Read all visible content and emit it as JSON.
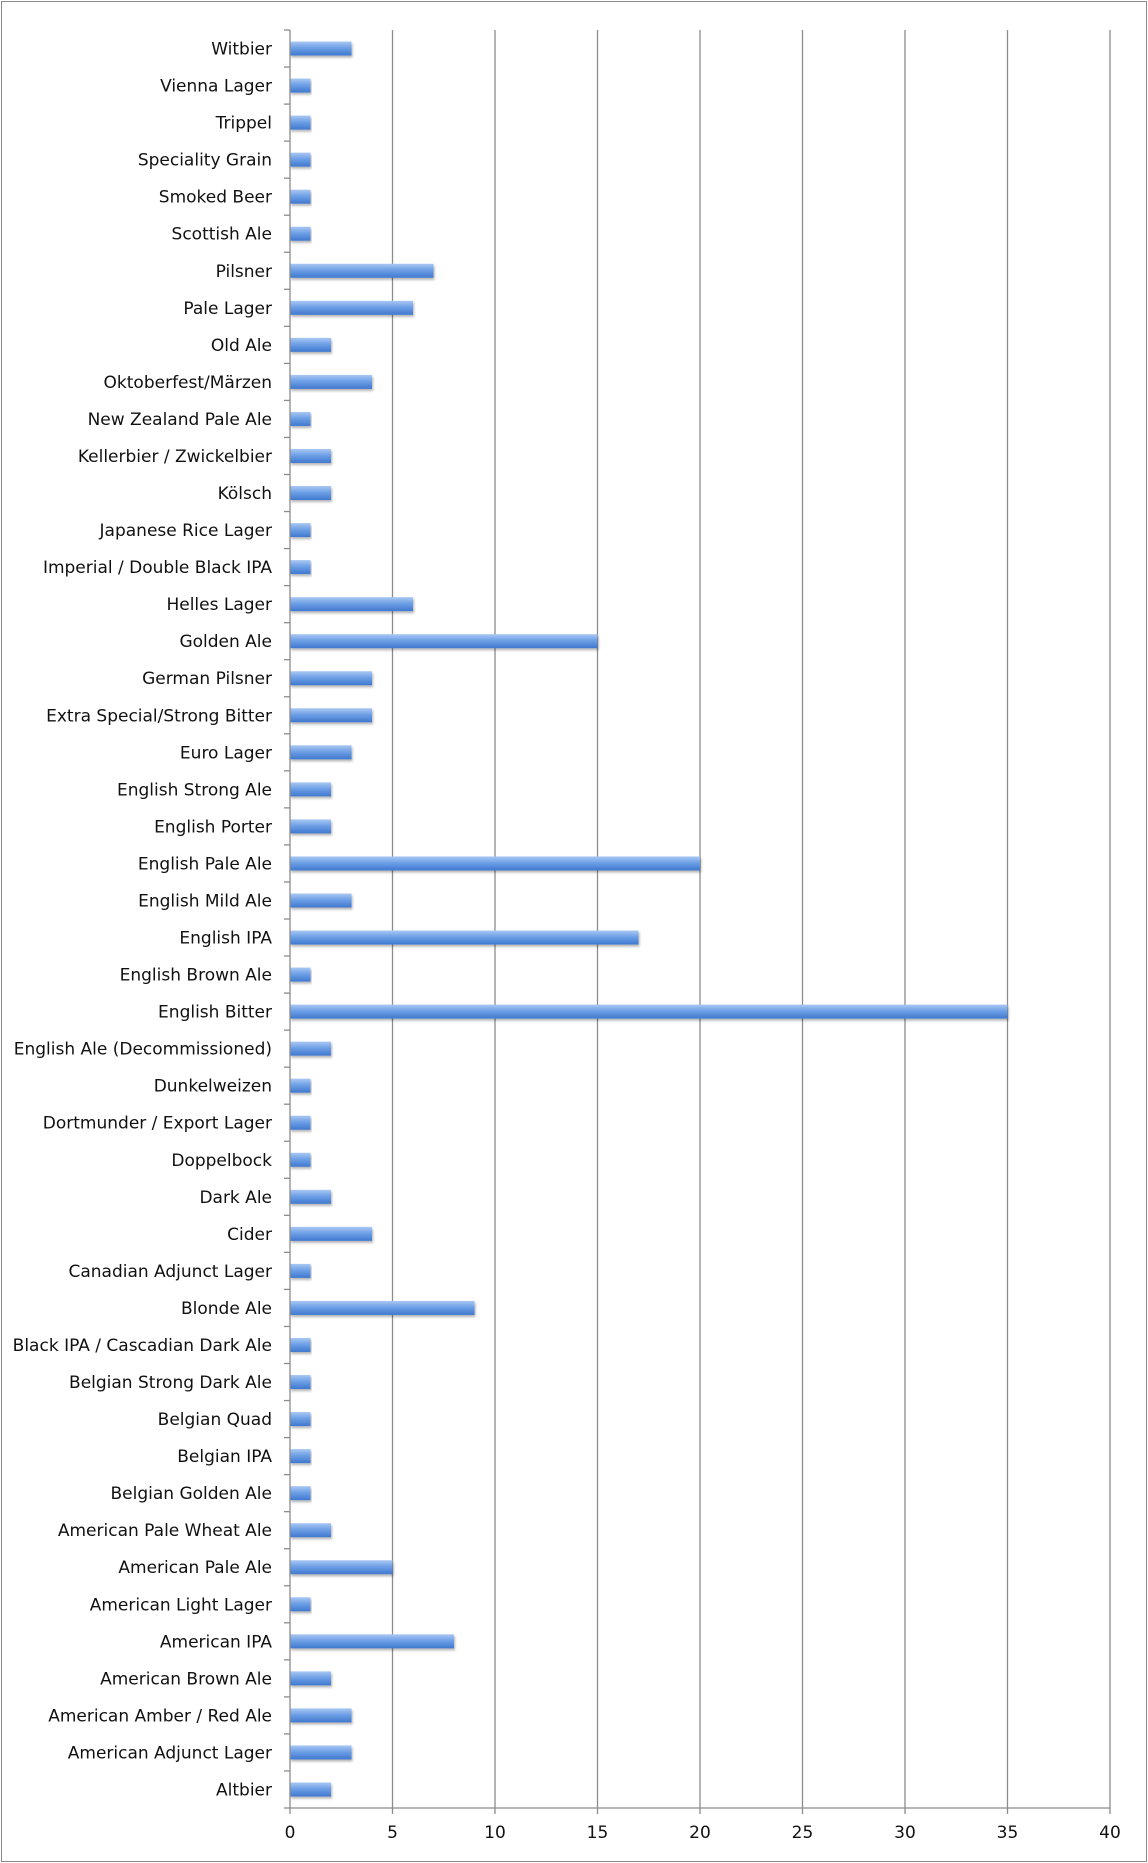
{
  "chart_data": {
    "type": "bar",
    "orientation": "horizontal",
    "title": "",
    "xlabel": "",
    "ylabel": "",
    "xlim": [
      0,
      40
    ],
    "xticks": [
      0,
      5,
      10,
      15,
      20,
      25,
      30,
      35,
      40
    ],
    "grid": "vertical major gridlines",
    "legend": "none",
    "bar_color": "#5b93e0",
    "categories": [
      "Witbier",
      "Vienna Lager",
      "Trippel",
      "Speciality Grain",
      "Smoked Beer",
      "Scottish Ale",
      "Pilsner",
      "Pale Lager",
      "Old Ale",
      "Oktoberfest/Märzen",
      "New Zealand Pale Ale",
      "Kellerbier / Zwickelbier",
      "Kölsch",
      "Japanese Rice Lager",
      "Imperial / Double Black IPA",
      "Helles Lager",
      "Golden Ale",
      "German Pilsner",
      "Extra Special/Strong Bitter",
      "Euro Lager",
      "English Strong Ale",
      "English Porter",
      "English Pale Ale",
      "English Mild Ale",
      "English IPA",
      "English Brown Ale",
      "English Bitter",
      "English Ale (Decommissioned)",
      "Dunkelweizen",
      "Dortmunder / Export Lager",
      "Doppelbock",
      "Dark Ale",
      "Cider",
      "Canadian Adjunct Lager",
      "Blonde Ale",
      "Black IPA / Cascadian Dark Ale",
      "Belgian Strong Dark Ale",
      "Belgian Quad",
      "Belgian IPA",
      "Belgian Golden Ale",
      "American Pale Wheat Ale",
      "American Pale Ale",
      "American Light Lager",
      "American IPA",
      "American Brown Ale",
      "American Amber / Red Ale",
      "American Adjunct Lager",
      "Altbier"
    ],
    "values": [
      3,
      1,
      1,
      1,
      1,
      1,
      7,
      6,
      2,
      4,
      1,
      2,
      2,
      1,
      1,
      6,
      15,
      4,
      4,
      3,
      2,
      2,
      20,
      3,
      17,
      1,
      35,
      2,
      1,
      1,
      1,
      2,
      4,
      1,
      9,
      1,
      1,
      1,
      1,
      1,
      2,
      5,
      1,
      8,
      2,
      3,
      3,
      2
    ]
  }
}
